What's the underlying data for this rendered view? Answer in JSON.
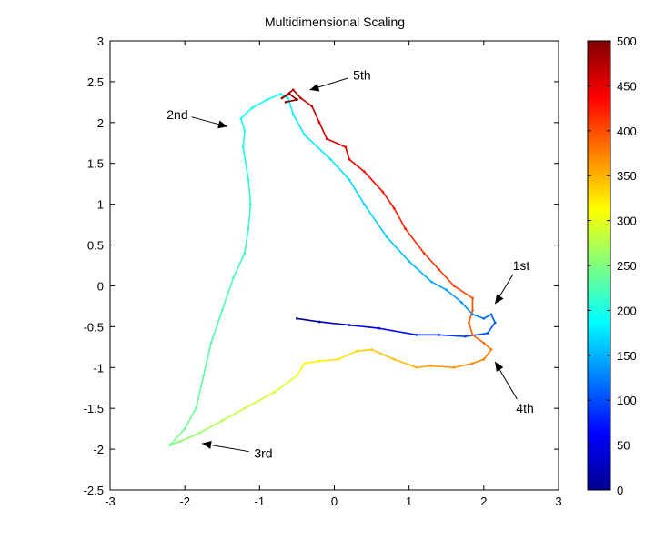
{
  "chart_data": {
    "type": "line",
    "title": "Multidimensional Scaling",
    "xlabel": "",
    "ylabel": "",
    "xlim": [
      -3,
      3
    ],
    "ylim": [
      -2.5,
      3
    ],
    "xticks": [
      "-3",
      "-2",
      "-1",
      "0",
      "1",
      "2",
      "3"
    ],
    "yticks": [
      "-2.5",
      "-2",
      "-1.5",
      "-1",
      "-0.5",
      "0",
      "0.5",
      "1",
      "1.5",
      "2",
      "2.5",
      "3"
    ],
    "grid": false,
    "colormap": "jet",
    "colorbar": {
      "min": 0,
      "max": 500,
      "ticks": [
        "0",
        "50",
        "100",
        "150",
        "200",
        "250",
        "300",
        "350",
        "400",
        "450",
        "500"
      ]
    },
    "series": [
      {
        "points": [
          [
            -0.5,
            -0.4,
            0
          ],
          [
            -0.2,
            -0.44,
            20
          ],
          [
            0.2,
            -0.48,
            40
          ],
          [
            0.6,
            -0.52,
            60
          ],
          [
            1.1,
            -0.6,
            75
          ],
          [
            1.4,
            -0.6,
            85
          ],
          [
            1.75,
            -0.62,
            95
          ],
          [
            2.05,
            -0.58,
            102
          ],
          [
            2.15,
            -0.45,
            110
          ],
          [
            2.1,
            -0.35,
            116
          ],
          [
            2.0,
            -0.4,
            122
          ],
          [
            1.85,
            -0.35,
            128
          ],
          [
            1.7,
            -0.2,
            135
          ],
          [
            1.5,
            -0.05,
            142
          ],
          [
            1.3,
            0.05,
            148
          ],
          [
            1.0,
            0.3,
            155
          ],
          [
            0.7,
            0.6,
            162
          ],
          [
            0.4,
            1.0,
            168
          ],
          [
            0.2,
            1.3,
            172
          ],
          [
            -0.05,
            1.55,
            176
          ],
          [
            -0.4,
            1.85,
            180
          ],
          [
            -0.55,
            2.1,
            183
          ],
          [
            -0.62,
            2.3,
            186
          ],
          [
            -0.72,
            2.35,
            189
          ],
          [
            -0.9,
            2.28,
            192
          ],
          [
            -1.1,
            2.18,
            195
          ],
          [
            -1.25,
            2.05,
            198
          ],
          [
            -1.2,
            1.9,
            202
          ],
          [
            -1.22,
            1.7,
            205
          ],
          [
            -1.15,
            1.3,
            208
          ],
          [
            -1.12,
            1.0,
            212
          ],
          [
            -1.15,
            0.7,
            215
          ],
          [
            -1.2,
            0.4,
            218
          ],
          [
            -1.35,
            0.1,
            222
          ],
          [
            -1.5,
            -0.3,
            226
          ],
          [
            -1.65,
            -0.7,
            230
          ],
          [
            -1.75,
            -1.1,
            234
          ],
          [
            -1.85,
            -1.5,
            238
          ],
          [
            -2.0,
            -1.75,
            242
          ],
          [
            -2.2,
            -1.95,
            248
          ],
          [
            -2.05,
            -1.9,
            256
          ],
          [
            -1.8,
            -1.8,
            265
          ],
          [
            -1.5,
            -1.65,
            275
          ],
          [
            -1.2,
            -1.5,
            285
          ],
          [
            -0.8,
            -1.3,
            295
          ],
          [
            -0.5,
            -1.1,
            305
          ],
          [
            -0.4,
            -0.95,
            312
          ],
          [
            -0.2,
            -0.92,
            318
          ],
          [
            0.05,
            -0.9,
            325
          ],
          [
            0.3,
            -0.8,
            332
          ],
          [
            0.5,
            -0.78,
            338
          ],
          [
            0.8,
            -0.9,
            345
          ],
          [
            1.1,
            -1.0,
            352
          ],
          [
            1.3,
            -0.98,
            358
          ],
          [
            1.6,
            -1.0,
            364
          ],
          [
            1.85,
            -0.95,
            370
          ],
          [
            2.0,
            -0.9,
            375
          ],
          [
            2.1,
            -0.78,
            380
          ],
          [
            2.0,
            -0.7,
            384
          ],
          [
            1.85,
            -0.6,
            388
          ],
          [
            1.8,
            -0.45,
            392
          ],
          [
            1.85,
            -0.3,
            396
          ],
          [
            1.85,
            -0.15,
            400
          ],
          [
            1.6,
            0.0,
            405
          ],
          [
            1.4,
            0.2,
            410
          ],
          [
            1.2,
            0.4,
            415
          ],
          [
            0.95,
            0.7,
            420
          ],
          [
            0.8,
            0.95,
            425
          ],
          [
            0.65,
            1.15,
            430
          ],
          [
            0.4,
            1.4,
            435
          ],
          [
            0.2,
            1.55,
            440
          ],
          [
            0.15,
            1.7,
            445
          ],
          [
            -0.1,
            1.8,
            452
          ],
          [
            -0.2,
            2.0,
            458
          ],
          [
            -0.3,
            2.2,
            465
          ],
          [
            -0.45,
            2.3,
            472
          ],
          [
            -0.55,
            2.4,
            478
          ],
          [
            -0.7,
            2.3,
            485
          ],
          [
            -0.6,
            2.35,
            490
          ],
          [
            -0.5,
            2.28,
            495
          ],
          [
            -0.65,
            2.25,
            500
          ]
        ]
      }
    ],
    "annotations": [
      {
        "text": "1st",
        "text_at": [
          2.5,
          0.25
        ],
        "arrow_to": [
          2.15,
          -0.22
        ]
      },
      {
        "text": "2nd",
        "text_at": [
          -2.1,
          2.1
        ],
        "arrow_to": [
          -1.43,
          1.95
        ]
      },
      {
        "text": "3rd",
        "text_at": [
          -0.95,
          -2.05
        ],
        "arrow_to": [
          -1.77,
          -1.93
        ]
      },
      {
        "text": "4th",
        "text_at": [
          2.55,
          -1.5
        ],
        "arrow_to": [
          2.15,
          -0.93
        ]
      },
      {
        "text": "5th",
        "text_at": [
          0.37,
          2.58
        ],
        "arrow_to": [
          -0.33,
          2.4
        ]
      }
    ]
  }
}
